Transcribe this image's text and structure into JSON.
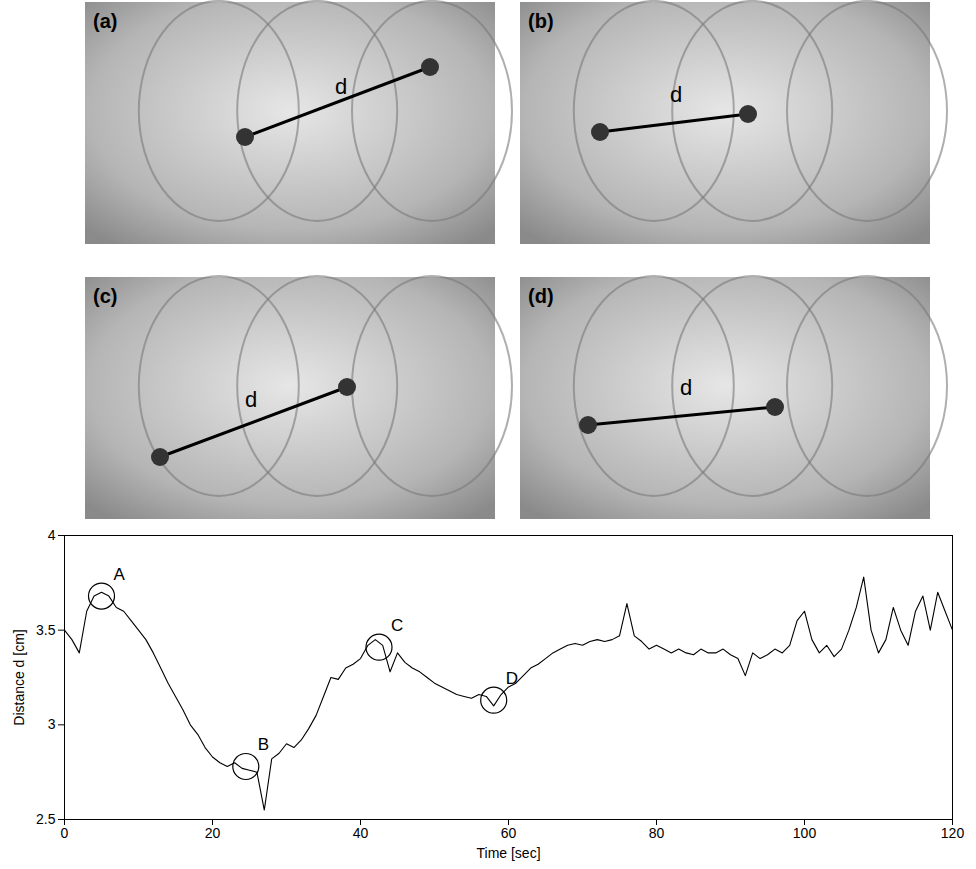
{
  "panels": [
    {
      "label": "(a)",
      "line_label": "d"
    },
    {
      "label": "(b)",
      "line_label": "d"
    },
    {
      "label": "(c)",
      "line_label": "d"
    },
    {
      "label": "(d)",
      "line_label": "d"
    }
  ],
  "chart_data": {
    "type": "line",
    "x_label": "Time [sec]",
    "y_label": "Distance d [cm]",
    "xlim": [
      0,
      120
    ],
    "xticks": [
      0,
      20,
      40,
      60,
      80,
      100,
      120
    ],
    "ylim": [
      2.5,
      4
    ],
    "yticks": [
      2.5,
      3,
      3.5,
      4
    ],
    "grid": false,
    "color": "#000000",
    "x": [
      0,
      1,
      2,
      3,
      4,
      5,
      6,
      7,
      8,
      9,
      10,
      11,
      12,
      13,
      14,
      15,
      16,
      17,
      18,
      19,
      20,
      21,
      22,
      23,
      24,
      25,
      26,
      27,
      28,
      29,
      30,
      31,
      32,
      33,
      34,
      35,
      36,
      37,
      38,
      39,
      40,
      41,
      42,
      43,
      44,
      45,
      46,
      47,
      48,
      49,
      50,
      51,
      52,
      53,
      54,
      55,
      56,
      57,
      58,
      59,
      60,
      61,
      62,
      63,
      64,
      65,
      66,
      67,
      68,
      69,
      70,
      71,
      72,
      73,
      74,
      75,
      76,
      77,
      78,
      79,
      80,
      81,
      82,
      83,
      84,
      85,
      86,
      87,
      88,
      89,
      90,
      91,
      92,
      93,
      94,
      95,
      96,
      97,
      98,
      99,
      100,
      101,
      102,
      103,
      104,
      105,
      106,
      107,
      108,
      109,
      110,
      111,
      112,
      113,
      114,
      115,
      116,
      117,
      118,
      119,
      120
    ],
    "values": [
      3.5,
      3.45,
      3.38,
      3.6,
      3.68,
      3.7,
      3.68,
      3.62,
      3.6,
      3.55,
      3.5,
      3.45,
      3.38,
      3.3,
      3.22,
      3.15,
      3.08,
      3.0,
      2.95,
      2.88,
      2.83,
      2.8,
      2.78,
      2.8,
      2.77,
      2.76,
      2.75,
      2.55,
      2.82,
      2.85,
      2.9,
      2.88,
      2.92,
      2.98,
      3.05,
      3.15,
      3.25,
      3.24,
      3.3,
      3.32,
      3.35,
      3.42,
      3.45,
      3.42,
      3.28,
      3.38,
      3.33,
      3.3,
      3.28,
      3.25,
      3.22,
      3.2,
      3.18,
      3.16,
      3.15,
      3.14,
      3.16,
      3.15,
      3.1,
      3.16,
      3.2,
      3.22,
      3.26,
      3.3,
      3.32,
      3.35,
      3.38,
      3.4,
      3.42,
      3.43,
      3.42,
      3.44,
      3.45,
      3.44,
      3.45,
      3.47,
      3.64,
      3.47,
      3.44,
      3.4,
      3.42,
      3.4,
      3.38,
      3.4,
      3.38,
      3.37,
      3.4,
      3.38,
      3.38,
      3.4,
      3.37,
      3.35,
      3.26,
      3.38,
      3.35,
      3.37,
      3.4,
      3.38,
      3.42,
      3.55,
      3.6,
      3.45,
      3.38,
      3.42,
      3.36,
      3.4,
      3.5,
      3.62,
      3.78,
      3.5,
      3.38,
      3.45,
      3.62,
      3.5,
      3.42,
      3.6,
      3.68,
      3.5,
      3.7,
      3.6,
      3.5
    ],
    "annotations": [
      {
        "label": "A",
        "x": 5,
        "y": 3.68
      },
      {
        "label": "B",
        "x": 24.5,
        "y": 2.78
      },
      {
        "label": "C",
        "x": 42.5,
        "y": 3.41
      },
      {
        "label": "D",
        "x": 58,
        "y": 3.13
      }
    ]
  }
}
